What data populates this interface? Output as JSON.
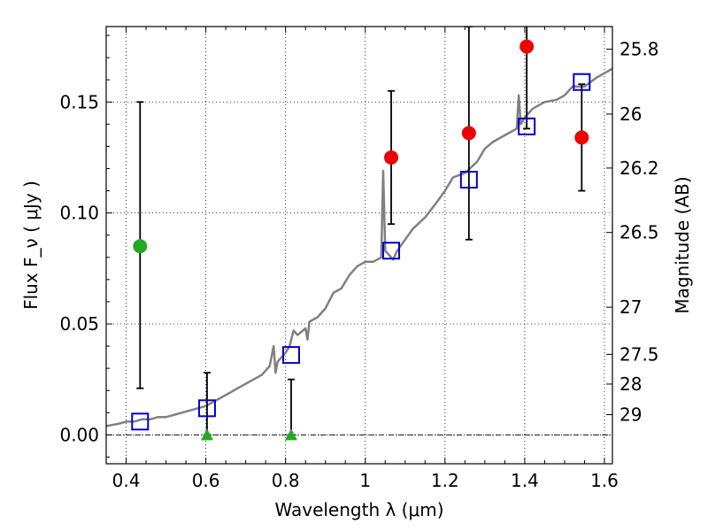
{
  "chart_data": {
    "type": "scatter",
    "title": "",
    "xlabel": "Wavelength  λ (μm)",
    "ylabel": "Flux  F_ν  ( μJy )",
    "ylabel_right": "Magnitude (AB)",
    "xlim": [
      0.35,
      1.62
    ],
    "ylim": [
      -0.013,
      0.184
    ],
    "grid": true,
    "x_ticks": [
      0.4,
      0.6,
      0.8,
      1.0,
      1.2,
      1.4,
      1.6
    ],
    "x_tick_labels": [
      "0.4",
      "0.6",
      "0.8",
      "1",
      "1.2",
      "1.4",
      "1.6"
    ],
    "y_ticks": [
      0.0,
      0.05,
      0.1,
      0.15
    ],
    "y_tick_labels": [
      "0.00",
      "0.05",
      "0.10",
      "0.15"
    ],
    "right_ticks": [
      25.8,
      26,
      26.2,
      26.5,
      27,
      27.5,
      28,
      29
    ],
    "right_tick_labels": [
      "25.8",
      "26",
      "26.2",
      "26.5",
      "27",
      "27.5",
      "28",
      "29"
    ],
    "colors": {
      "model_line": "#808080",
      "model_points": "#0000cc",
      "detections": "#ee0000",
      "nondetection_low": "#22aa22",
      "error_bars": "#000000",
      "zero_line": "#000000"
    },
    "series": [
      {
        "role": "model_spectrum",
        "x": [
          0.35,
          0.38,
          0.4,
          0.42,
          0.44,
          0.46,
          0.48,
          0.5,
          0.52,
          0.54,
          0.56,
          0.58,
          0.6,
          0.62,
          0.64,
          0.66,
          0.68,
          0.7,
          0.72,
          0.74,
          0.76,
          0.77,
          0.775,
          0.78,
          0.79,
          0.8,
          0.81,
          0.82,
          0.83,
          0.85,
          0.855,
          0.86,
          0.87,
          0.88,
          0.9,
          0.92,
          0.94,
          0.96,
          0.98,
          1.0,
          1.02,
          1.04,
          1.045,
          1.05,
          1.06,
          1.07,
          1.08,
          1.1,
          1.12,
          1.15,
          1.18,
          1.2,
          1.22,
          1.25,
          1.28,
          1.3,
          1.32,
          1.35,
          1.38,
          1.385,
          1.39,
          1.4,
          1.42,
          1.45,
          1.48,
          1.5,
          1.52,
          1.55,
          1.58,
          1.6,
          1.62
        ],
        "y": [
          0.004,
          0.005,
          0.006,
          0.006,
          0.007,
          0.007,
          0.008,
          0.008,
          0.009,
          0.01,
          0.011,
          0.012,
          0.013,
          0.015,
          0.017,
          0.019,
          0.021,
          0.023,
          0.025,
          0.027,
          0.031,
          0.04,
          0.028,
          0.033,
          0.035,
          0.037,
          0.04,
          0.047,
          0.045,
          0.048,
          0.043,
          0.051,
          0.052,
          0.053,
          0.057,
          0.064,
          0.066,
          0.072,
          0.076,
          0.078,
          0.078,
          0.08,
          0.119,
          0.083,
          0.081,
          0.079,
          0.083,
          0.088,
          0.093,
          0.098,
          0.105,
          0.11,
          0.116,
          0.118,
          0.123,
          0.129,
          0.132,
          0.135,
          0.138,
          0.153,
          0.14,
          0.143,
          0.147,
          0.15,
          0.151,
          0.153,
          0.157,
          0.157,
          0.161,
          0.163,
          0.165
        ]
      },
      {
        "role": "model_photometry",
        "x": [
          0.435,
          0.603,
          0.814,
          1.065,
          1.26,
          1.405,
          1.543
        ],
        "y": [
          0.006,
          0.012,
          0.036,
          0.083,
          0.115,
          0.139,
          0.159
        ]
      },
      {
        "role": "detections",
        "x": [
          1.065,
          1.26,
          1.405,
          1.543
        ],
        "y": [
          0.125,
          0.136,
          0.175,
          0.134
        ],
        "yerr_low": [
          0.03,
          0.048,
          0.037,
          0.024
        ],
        "yerr_high": [
          0.03,
          0.048,
          0.037,
          0.024
        ]
      },
      {
        "role": "green_point",
        "x": [
          0.435
        ],
        "y": [
          0.085
        ],
        "yerr_low": [
          0.064
        ],
        "yerr_high": [
          0.065
        ]
      },
      {
        "role": "upper_limits",
        "x": [
          0.603,
          0.814
        ],
        "y": [
          0.0,
          0.0
        ],
        "yerr_high": [
          0.028,
          0.025
        ]
      }
    ]
  }
}
